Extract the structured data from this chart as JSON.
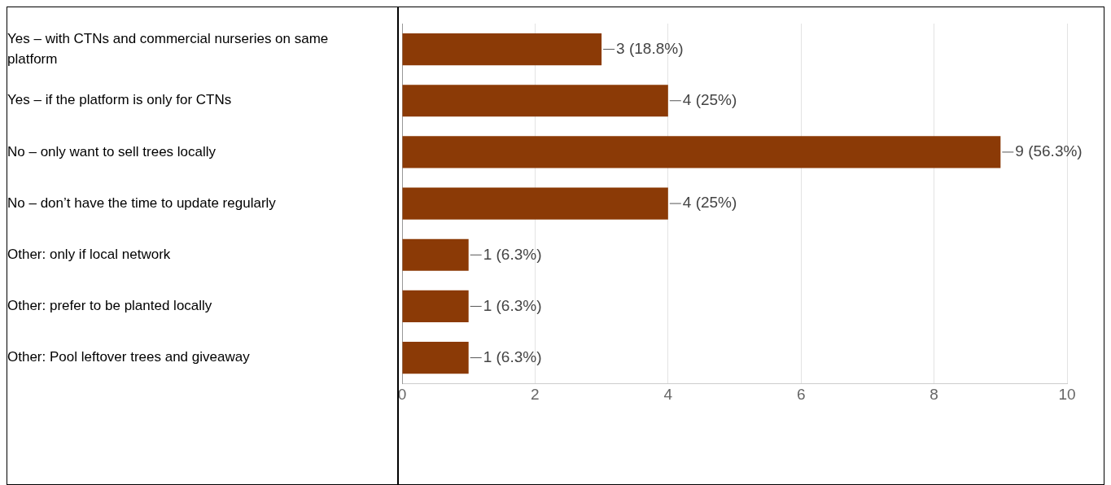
{
  "chart_data": {
    "type": "bar",
    "orientation": "horizontal",
    "categories": [
      "Yes – with CTNs and commercial nurseries on same platform",
      "Yes – if the platform is only for CTNs",
      "No – only want to sell trees locally",
      "No – don’t have the time to update regularly",
      "Other: only if local network",
      "Other: prefer to be planted locally",
      "Other: Pool leftover trees and giveaway"
    ],
    "values": [
      3,
      4,
      9,
      4,
      1,
      1,
      1
    ],
    "value_labels": [
      "3 (18.8%)",
      "4 (25%)",
      "9 (56.3%)",
      "4 (25%)",
      "1 (6.3%)",
      "1 (6.3%)",
      "1 (6.3%)"
    ],
    "color": "#8b3a06",
    "xlim": [
      0,
      10
    ],
    "xticks": [
      0,
      2,
      4,
      6,
      8,
      10
    ],
    "grid": "x",
    "legend": false
  }
}
